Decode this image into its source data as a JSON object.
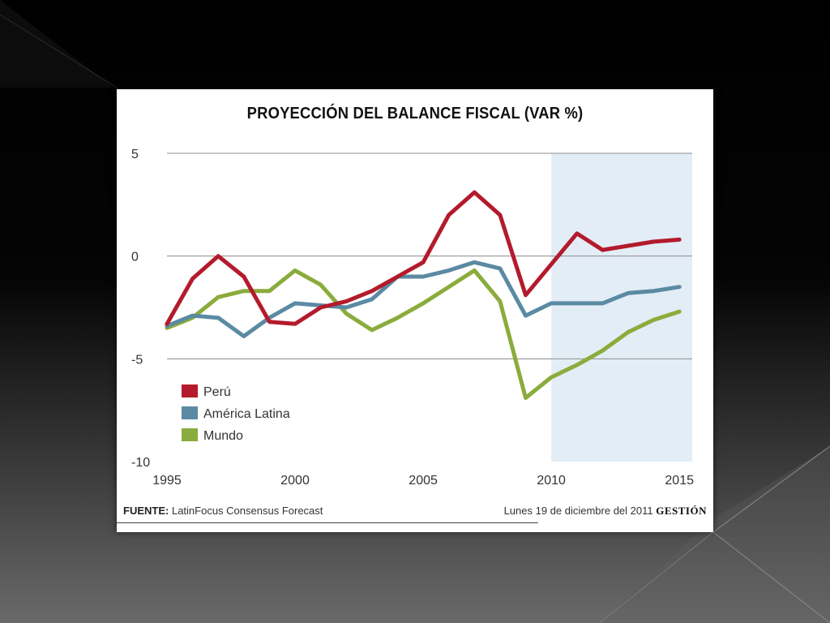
{
  "slide": {
    "footer_source_label": "FUENTE:",
    "footer_source": "LatinFocus Consensus Forecast",
    "footer_date": "Lunes 19 de diciembre del 2011",
    "footer_brand": "GESTIÓN"
  },
  "chart_data": {
    "type": "line",
    "title": "PROYECCIÓN DEL BALANCE FISCAL (VAR %)",
    "xlabel": "",
    "ylabel": "",
    "xlim": [
      1995,
      2015.5
    ],
    "ylim": [
      -10,
      5
    ],
    "yticks": [
      5,
      0,
      -5,
      -10
    ],
    "xticks": [
      1995,
      2000,
      2005,
      2010,
      2015
    ],
    "grid": "horizontal",
    "forecast_region": {
      "from": 2010,
      "to": 2015.5,
      "color": "#e3edf6"
    },
    "legend_position": "bottom-left",
    "x": [
      1995,
      1996,
      1997,
      1998,
      1999,
      2000,
      2001,
      2002,
      2003,
      2004,
      2005,
      2006,
      2007,
      2008,
      2009,
      2010,
      2011,
      2012,
      2013,
      2014,
      2015
    ],
    "series": [
      {
        "name": "Perú",
        "color": "#b31b2c",
        "values": [
          -3.3,
          -1.1,
          0.0,
          -1.0,
          -3.2,
          -3.3,
          -2.5,
          -2.2,
          -1.7,
          -1.0,
          -0.3,
          2.0,
          3.1,
          2.0,
          -1.9,
          -0.4,
          1.1,
          0.3,
          0.5,
          0.7,
          0.8
        ]
      },
      {
        "name": "América Latina",
        "color": "#5b8aa3",
        "values": [
          -3.4,
          -2.9,
          -3.0,
          -3.9,
          -3.0,
          -2.3,
          -2.4,
          -2.5,
          -2.1,
          -1.0,
          -1.0,
          -0.7,
          -0.3,
          -0.6,
          -2.9,
          -2.3,
          -2.3,
          -2.3,
          -1.8,
          -1.7,
          -1.5
        ]
      },
      {
        "name": "Mundo",
        "color": "#8aac3c",
        "values": [
          -3.5,
          -3.0,
          -2.0,
          -1.7,
          -1.7,
          -0.7,
          -1.4,
          -2.8,
          -3.6,
          -3.0,
          -2.3,
          -1.5,
          -0.7,
          -2.2,
          -6.9,
          -5.9,
          -5.3,
          -4.6,
          -3.7,
          -3.1,
          -2.7
        ]
      }
    ]
  }
}
